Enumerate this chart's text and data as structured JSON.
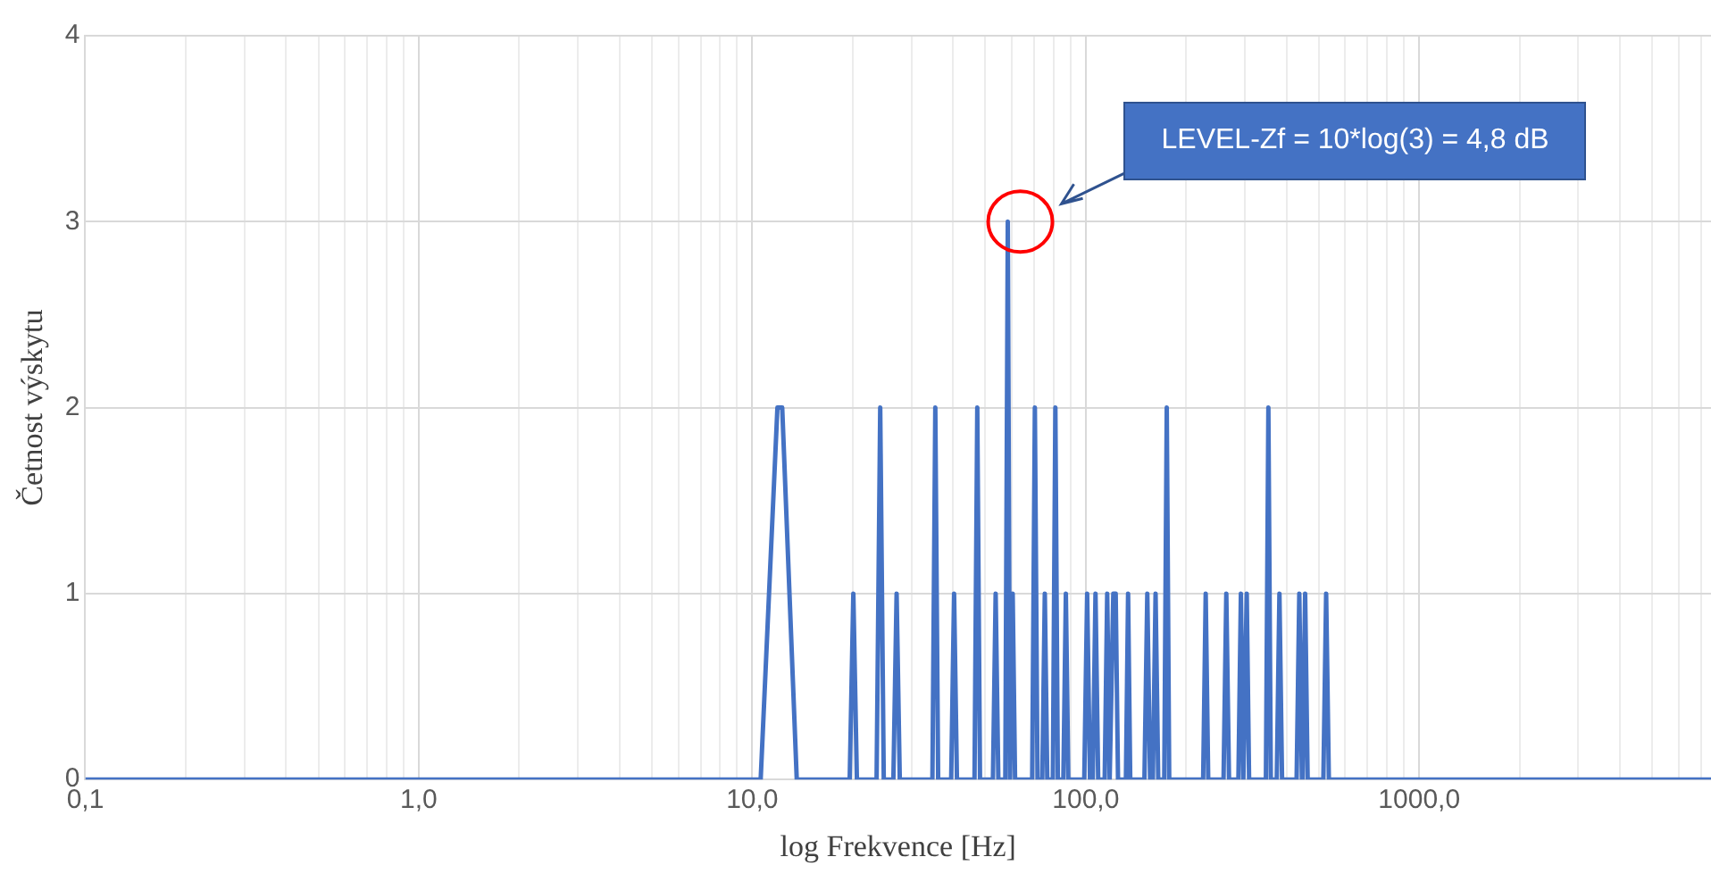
{
  "chart_data": {
    "type": "line",
    "xlabel": "log Frekvence [Hz]",
    "ylabel": "Četnost výskytu",
    "log": "x",
    "grid": true,
    "legend": false,
    "marker": "none",
    "line_style": "solid",
    "xlim": [
      0.1,
      7500
    ],
    "ylim": [
      0,
      4
    ],
    "yticks": [
      0,
      1,
      2,
      3,
      4
    ],
    "xticks": [
      {
        "value": 0.1,
        "label": "0,1"
      },
      {
        "value": 0.2,
        "label": null
      },
      {
        "value": 0.3,
        "label": null
      },
      {
        "value": 0.4,
        "label": null
      },
      {
        "value": 0.5,
        "label": null
      },
      {
        "value": 0.6,
        "label": null
      },
      {
        "value": 0.7,
        "label": null
      },
      {
        "value": 0.8,
        "label": null
      },
      {
        "value": 0.9,
        "label": null
      },
      {
        "value": 1,
        "label": "1,0"
      },
      {
        "value": 2,
        "label": null
      },
      {
        "value": 3,
        "label": null
      },
      {
        "value": 4,
        "label": null
      },
      {
        "value": 5,
        "label": null
      },
      {
        "value": 6,
        "label": null
      },
      {
        "value": 7,
        "label": null
      },
      {
        "value": 8,
        "label": null
      },
      {
        "value": 9,
        "label": null
      },
      {
        "value": 10,
        "label": "10,0"
      },
      {
        "value": 20,
        "label": null
      },
      {
        "value": 30,
        "label": null
      },
      {
        "value": 40,
        "label": null
      },
      {
        "value": 50,
        "label": null
      },
      {
        "value": 60,
        "label": null
      },
      {
        "value": 70,
        "label": null
      },
      {
        "value": 80,
        "label": null
      },
      {
        "value": 90,
        "label": null
      },
      {
        "value": 100,
        "label": "100,0"
      },
      {
        "value": 200,
        "label": null
      },
      {
        "value": 300,
        "label": null
      },
      {
        "value": 400,
        "label": null
      },
      {
        "value": 500,
        "label": null
      },
      {
        "value": 600,
        "label": null
      },
      {
        "value": 700,
        "label": null
      },
      {
        "value": 800,
        "label": null
      },
      {
        "value": 900,
        "label": null
      },
      {
        "value": 1000,
        "label": "1000,0"
      },
      {
        "value": 2000,
        "label": null
      },
      {
        "value": 3000,
        "label": null
      },
      {
        "value": 4000,
        "label": null
      },
      {
        "value": 5000,
        "label": null
      },
      {
        "value": 6000,
        "label": null
      },
      {
        "value": 7000,
        "label": null
      }
    ],
    "annotations": [
      "LEVEL-Zf = 10*log(3) = 4,8 dB"
    ],
    "series": [
      {
        "color": "#4472c4",
        "x": [
          0.1,
          10.6,
          11.9,
          12.3,
          13.6,
          19.6,
          20.1,
          20.6,
          23.6,
          24.2,
          24.8,
          26.5,
          27.1,
          27.7,
          34.7,
          35.4,
          36.1,
          39.5,
          40.3,
          41.1,
          46.4,
          47.3,
          48.2,
          52.7,
          53.7,
          54.7,
          57.4,
          58.4,
          59.3,
          59.5,
          60.4,
          61.4,
          69.1,
          70.4,
          71.7,
          74.1,
          75.4,
          76.7,
          79.7,
          81.1,
          82.5,
          85.7,
          87.2,
          88.7,
          99,
          101,
          103,
          105,
          107,
          109,
          114,
          116,
          118,
          119,
          121,
          123,
          125,
          132,
          134,
          136,
          150,
          153,
          156,
          159,
          162,
          165,
          172,
          175,
          178,
          225,
          229,
          233,
          259,
          264,
          269,
          287,
          292,
          297,
          299,
          304,
          309,
          347,
          353,
          359,
          374,
          381,
          388,
          429,
          437,
          445,
          447,
          455,
          463,
          516,
          526,
          536,
          7500
        ],
        "values": [
          0,
          0,
          2,
          2,
          0,
          0,
          1,
          0,
          0,
          2,
          0,
          0,
          1,
          0,
          0,
          2,
          0,
          0,
          1,
          0,
          0,
          2,
          0,
          0,
          1,
          0,
          0,
          3,
          0,
          0,
          1,
          0,
          0,
          2,
          0,
          0,
          1,
          0,
          0,
          2,
          0,
          0,
          1,
          0,
          0,
          1,
          0,
          0,
          1,
          0,
          0,
          1,
          0,
          0,
          1,
          1,
          0,
          0,
          1,
          0,
          0,
          1,
          0,
          0,
          1,
          0,
          0,
          2,
          0,
          0,
          1,
          0,
          0,
          1,
          0,
          0,
          1,
          0,
          0,
          1,
          0,
          0,
          2,
          0,
          0,
          1,
          0,
          0,
          1,
          0,
          0,
          1,
          0,
          0,
          1,
          0,
          0
        ]
      }
    ]
  }
}
